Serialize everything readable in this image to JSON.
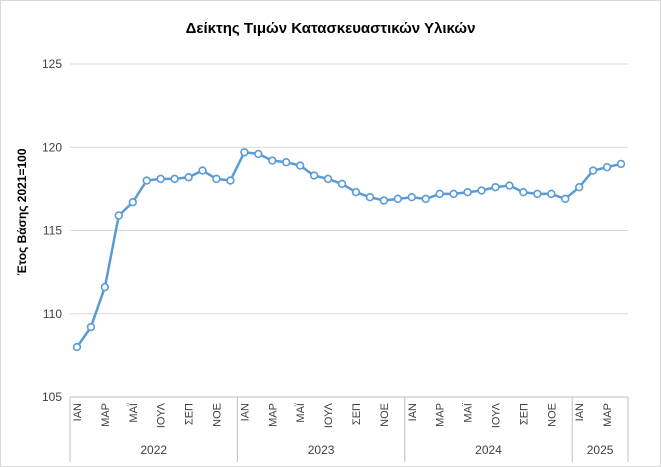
{
  "chart_data": {
    "type": "line",
    "title": "Δείκτης Τιμών Κατασκευαστικών Υλικών",
    "ylabel": "Έτος Βάσης 2021=100",
    "xlabel": "",
    "ylim": [
      105,
      125
    ],
    "yticks": [
      105,
      110,
      115,
      120,
      125
    ],
    "grid": true,
    "legend": "none",
    "line_color": "#5b9bd5",
    "month_tick_labels": [
      "ΙΑΝ",
      "ΜΑΡ",
      "ΜΑΪ",
      "ΙΟΥΛ",
      "ΣΕΠ",
      "ΝΟΕ"
    ],
    "month_tick_every": 2,
    "years": [
      {
        "label": "2022",
        "months": 12
      },
      {
        "label": "2023",
        "months": 12
      },
      {
        "label": "2024",
        "months": 12
      },
      {
        "label": "2025",
        "months": 4
      }
    ],
    "values": [
      108.0,
      109.2,
      111.6,
      115.9,
      116.7,
      118.0,
      118.1,
      118.1,
      118.2,
      118.6,
      118.1,
      118.0,
      119.7,
      119.6,
      119.2,
      119.1,
      118.9,
      118.3,
      118.1,
      117.8,
      117.3,
      117.0,
      116.8,
      116.9,
      117.0,
      116.9,
      117.2,
      117.2,
      117.3,
      117.4,
      117.6,
      117.7,
      117.3,
      117.2,
      117.2,
      116.9,
      117.6,
      118.6,
      118.8,
      119.0
    ]
  }
}
